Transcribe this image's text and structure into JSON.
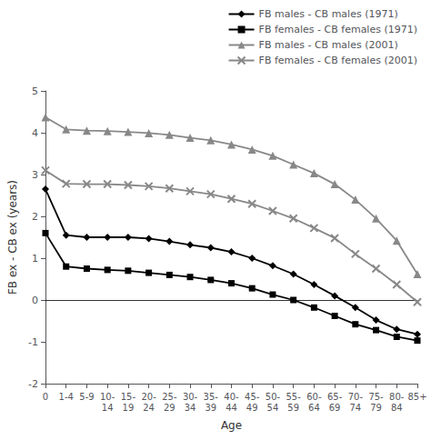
{
  "chart_data": {
    "type": "line",
    "xlabel": "Age",
    "ylabel": "FB ex - CB ex (years)",
    "categories": [
      "0",
      "1-4",
      "5-9",
      "10-\n14",
      "15-\n19",
      "20-\n24",
      "25-\n29",
      "30-\n34",
      "35-\n39",
      "40-\n44",
      "45-\n49",
      "50-\n54",
      "55-\n59",
      "60-\n64",
      "65-\n69",
      "70-\n74",
      "75-\n79",
      "80-\n84",
      "85+"
    ],
    "series": [
      {
        "name": "FB males - CB males (1971)",
        "color": "#000000",
        "marker": "diamond",
        "values": [
          2.65,
          1.55,
          1.5,
          1.5,
          1.5,
          1.47,
          1.4,
          1.32,
          1.25,
          1.15,
          1.0,
          0.82,
          0.62,
          0.37,
          0.1,
          -0.18,
          -0.48,
          -0.7,
          -0.82
        ]
      },
      {
        "name": "FB females - CB females (1971)",
        "color": "#000000",
        "marker": "square",
        "values": [
          1.6,
          0.8,
          0.75,
          0.72,
          0.7,
          0.65,
          0.6,
          0.55,
          0.48,
          0.4,
          0.28,
          0.13,
          0.0,
          -0.18,
          -0.38,
          -0.58,
          -0.72,
          -0.88,
          -0.97
        ]
      },
      {
        "name": "FB males - CB males (2001)",
        "color": "#888888",
        "marker": "triangle",
        "values": [
          4.37,
          4.08,
          4.05,
          4.04,
          4.02,
          3.99,
          3.95,
          3.88,
          3.82,
          3.72,
          3.6,
          3.45,
          3.24,
          3.03,
          2.77,
          2.4,
          1.95,
          1.42,
          0.62
        ]
      },
      {
        "name": "FB females - CB females (2001)",
        "color": "#888888",
        "marker": "x",
        "values": [
          3.1,
          2.78,
          2.77,
          2.77,
          2.75,
          2.72,
          2.67,
          2.6,
          2.53,
          2.42,
          2.3,
          2.13,
          1.95,
          1.72,
          1.48,
          1.1,
          0.75,
          0.37,
          -0.05
        ]
      }
    ],
    "ylim": [
      -2,
      5
    ],
    "yticks": [
      -2,
      -1,
      0,
      1,
      2,
      3,
      4,
      5
    ],
    "grid": false,
    "legend": "upper right"
  }
}
